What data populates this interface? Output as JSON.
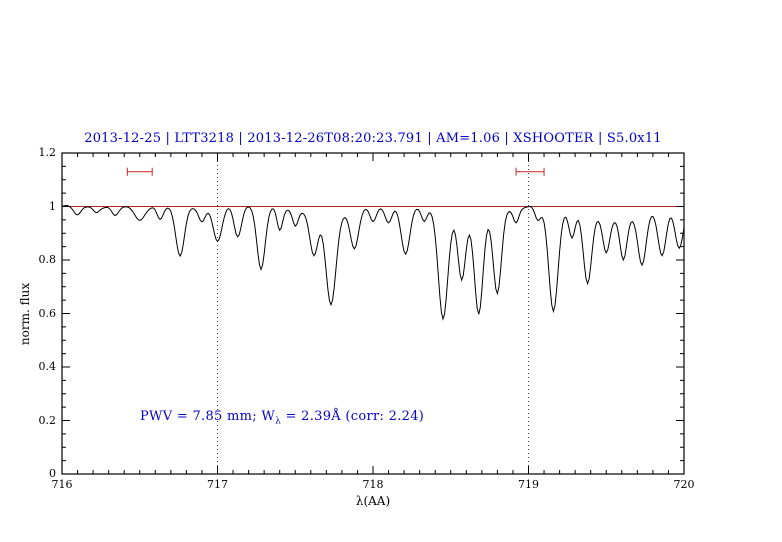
{
  "title": "2013-12-25 | LTT3218 | 2013-12-26T08:20:23.791 | AM=1.06 | XSHOOTER | S5.0x11",
  "annotation": {
    "prefix": "PWV = 7.85 mm; W",
    "sub": "λ",
    "suffix": " = 2.39Å (corr: 2.24)"
  },
  "axes": {
    "xlabel": "λ(AA)",
    "ylabel": "norm. flux"
  },
  "colors": {
    "title_blue": "#0000cc",
    "annotation_blue": "#0000cc",
    "axis_black": "#000000"
  },
  "chart_data": {
    "type": "line",
    "title": "2013-12-25 | LTT3218 | 2013-12-26T08:20:23.791 | AM=1.06 | XSHOOTER | S5.0x11",
    "xlabel": "λ(AA)",
    "ylabel": "norm. flux",
    "xlim": [
      716,
      720
    ],
    "ylim": [
      0,
      1.2
    ],
    "xticks": {
      "values": [
        716,
        717,
        718,
        719,
        720
      ],
      "labels": [
        "716",
        "717",
        "718",
        "719",
        "720"
      ],
      "minor_step": 0.1
    },
    "yticks": {
      "values": [
        0,
        0.2,
        0.4,
        0.6,
        0.8,
        1,
        1.2
      ],
      "labels": [
        "0",
        "0.2",
        "0.4",
        "0.6",
        "0.8",
        "1",
        "1.2"
      ],
      "minor_step": 0.05
    },
    "grid": false,
    "continuum_level": 1.0,
    "reference_line": {
      "y": 1.0,
      "color": "#b22222"
    },
    "vlines": {
      "x": [
        717,
        719
      ],
      "style": "dotted",
      "color": "#444444"
    },
    "range_markers": [
      {
        "x1": 716.42,
        "x2": 716.58,
        "y": 1.13
      },
      {
        "x1": 718.92,
        "x2": 719.1,
        "y": 1.13
      }
    ],
    "marker_color": "#cc2222",
    "series_color": "#000000",
    "sample_step": 0.01,
    "noise_amplitude": 0.004,
    "absorption_lines": [
      [
        716.1,
        0.03,
        0.022
      ],
      [
        716.22,
        0.025,
        0.02
      ],
      [
        716.34,
        0.035,
        0.022
      ],
      [
        716.5,
        0.055,
        0.03
      ],
      [
        716.63,
        0.05,
        0.02
      ],
      [
        716.76,
        0.185,
        0.028
      ],
      [
        716.9,
        0.06,
        0.022
      ],
      [
        717.0,
        0.13,
        0.028
      ],
      [
        717.13,
        0.11,
        0.024
      ],
      [
        717.28,
        0.235,
        0.026
      ],
      [
        717.4,
        0.085,
        0.018
      ],
      [
        717.5,
        0.06,
        0.018
      ],
      [
        717.62,
        0.15,
        0.026
      ],
      [
        717.73,
        0.33,
        0.032
      ],
      [
        717.88,
        0.14,
        0.026
      ],
      [
        718.0,
        0.05,
        0.02
      ],
      [
        718.1,
        0.06,
        0.022
      ],
      [
        718.21,
        0.175,
        0.028
      ],
      [
        718.33,
        0.05,
        0.018
      ],
      [
        718.45,
        0.4,
        0.03
      ],
      [
        718.57,
        0.23,
        0.024
      ],
      [
        718.68,
        0.355,
        0.027
      ],
      [
        718.8,
        0.3,
        0.026
      ],
      [
        718.92,
        0.055,
        0.018
      ],
      [
        719.06,
        0.045,
        0.018
      ],
      [
        719.16,
        0.385,
        0.03
      ],
      [
        719.28,
        0.1,
        0.02
      ],
      [
        719.38,
        0.255,
        0.026
      ],
      [
        719.5,
        0.13,
        0.022
      ],
      [
        719.61,
        0.16,
        0.022
      ],
      [
        719.73,
        0.19,
        0.026
      ],
      [
        719.86,
        0.17,
        0.026
      ],
      [
        719.97,
        0.15,
        0.026
      ],
      [
        718.63,
        0.05,
        0.14
      ],
      [
        717.7,
        0.035,
        0.15
      ],
      [
        719.55,
        0.045,
        0.2
      ]
    ]
  }
}
